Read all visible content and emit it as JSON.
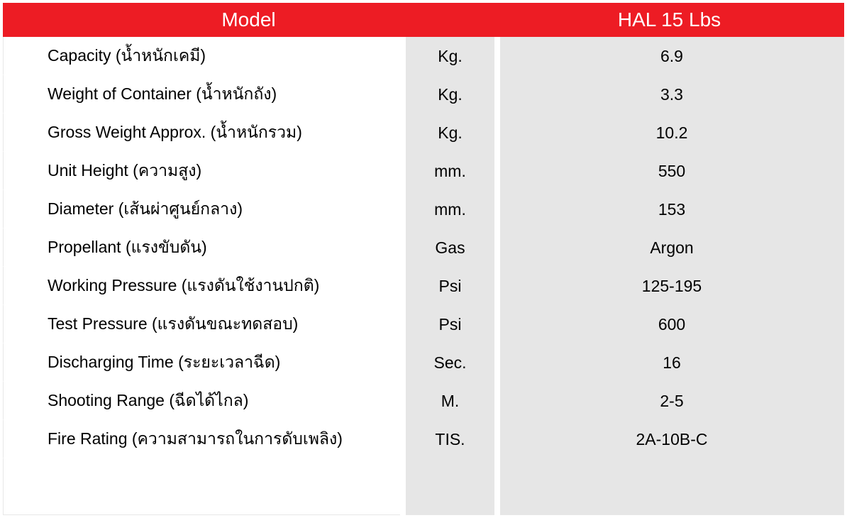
{
  "header": {
    "model_label": "Model",
    "value_label": "HAL 15 Lbs",
    "bg_color": "#ed1c24",
    "text_color": "#ffffff",
    "font_size": 28
  },
  "columns": {
    "label_width": 560,
    "unit_width": 125,
    "value_width": 485,
    "gap_width": 8
  },
  "colors": {
    "cell_alt_bg": "#e6e6e6",
    "cell_bg": "#ffffff",
    "text": "#000000",
    "border": "#e8e8e8"
  },
  "typography": {
    "body_font_size": 23,
    "font_family": "Helvetica Neue, Arial, sans-serif"
  },
  "rows": [
    {
      "label": "Capacity (น้ำหนักเคมี)",
      "unit": "Kg.",
      "value": "6.9"
    },
    {
      "label": "Weight of Container (น้ำหนักถัง)",
      "unit": "Kg.",
      "value": "3.3"
    },
    {
      "label": "Gross Weight Approx. (น้ำหนักรวม)",
      "unit": "Kg.",
      "value": "10.2"
    },
    {
      "label": "Unit Height (ความสูง)",
      "unit": "mm.",
      "value": "550"
    },
    {
      "label": "Diameter (เส้นผ่าศูนย์กลาง)",
      "unit": "mm.",
      "value": "153"
    },
    {
      "label": "Propellant (แรงขับดัน)",
      "unit": "Gas",
      "value": "Argon"
    },
    {
      "label": "Working Pressure (แรงดันใช้งานปกติ)",
      "unit": "Psi",
      "value": "125-195"
    },
    {
      "label": "Test Pressure (แรงดันขณะทดสอบ)",
      "unit": "Psi",
      "value": "600"
    },
    {
      "label": "Discharging Time (ระยะเวลาฉีด)",
      "unit": "Sec.",
      "value": "16"
    },
    {
      "label": "Shooting Range (ฉีดได้ไกล)",
      "unit": "M.",
      "value": "2-5"
    },
    {
      "label": "Fire Rating (ความสามารถในการดับเพลิง)",
      "unit": "TIS.",
      "value": "2A-10B-C"
    }
  ]
}
